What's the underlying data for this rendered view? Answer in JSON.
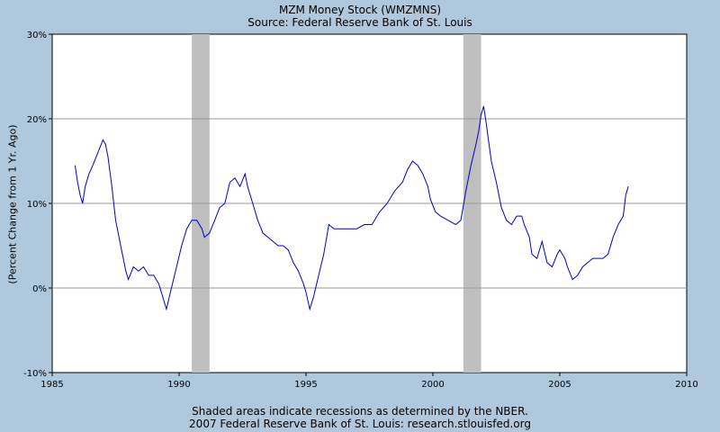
{
  "chart_data": {
    "type": "line",
    "title": "MZM Money Stock (WMZMNS)",
    "subtitle": "Source: Federal Reserve Bank of St. Louis",
    "ylabel": "(Percent Change from 1 Yr. Ago)",
    "xlabel": "",
    "xlim": [
      1985,
      2010
    ],
    "ylim": [
      -10,
      30
    ],
    "x_ticks": [
      1985,
      1990,
      1995,
      2000,
      2005,
      2010
    ],
    "x_tick_labels": [
      "1985",
      "1990",
      "1995",
      "2000",
      "2005",
      "2010"
    ],
    "y_ticks": [
      -10,
      0,
      10,
      20,
      30
    ],
    "y_tick_labels": [
      "-10%",
      "0%",
      "10%",
      "20%",
      "30%"
    ],
    "grid": true,
    "recessions": [
      [
        1990.5,
        1991.2
      ],
      [
        2001.2,
        2001.9
      ]
    ],
    "series": [
      {
        "color": "#0000cc",
        "x": [
          1985.9,
          1986.0,
          1986.1,
          1986.2,
          1986.3,
          1986.45,
          1986.6,
          1986.8,
          1987.0,
          1987.1,
          1987.2,
          1987.35,
          1987.5,
          1987.7,
          1987.9,
          1988.0,
          1988.2,
          1988.4,
          1988.6,
          1988.8,
          1989.0,
          1989.2,
          1989.3,
          1989.4,
          1989.5,
          1989.7,
          1989.9,
          1990.1,
          1990.3,
          1990.5,
          1990.7,
          1990.9,
          1991.0,
          1991.2,
          1991.4,
          1991.6,
          1991.8,
          1992.0,
          1992.2,
          1992.4,
          1992.6,
          1992.7,
          1992.9,
          1993.1,
          1993.3,
          1993.5,
          1993.7,
          1993.9,
          1994.1,
          1994.3,
          1994.5,
          1994.7,
          1994.9,
          1995.0,
          1995.15,
          1995.3,
          1995.5,
          1995.7,
          1995.9,
          1996.1,
          1996.4,
          1996.7,
          1997.0,
          1997.3,
          1997.6,
          1997.9,
          1998.2,
          1998.5,
          1998.8,
          1999.0,
          1999.2,
          1999.4,
          1999.6,
          1999.8,
          1999.9,
          2000.1,
          2000.3,
          2000.6,
          2000.9,
          2001.1,
          2001.3,
          2001.5,
          2001.7,
          2001.8,
          2001.9,
          2002.0,
          2002.1,
          2002.3,
          2002.5,
          2002.7,
          2002.9,
          2003.1,
          2003.3,
          2003.5,
          2003.6,
          2003.8,
          2003.9,
          2004.1,
          2004.3,
          2004.5,
          2004.7,
          2004.9,
          2005.0,
          2005.2,
          2005.3,
          2005.5,
          2005.7,
          2005.9,
          2006.1,
          2006.3,
          2006.5,
          2006.7,
          2006.9,
          2007.1,
          2007.3,
          2007.5,
          2007.6,
          2007.7
        ],
        "y": [
          14.5,
          12.5,
          11.0,
          10.0,
          12.0,
          13.5,
          14.5,
          16.0,
          17.5,
          17.0,
          15.5,
          12.0,
          8.0,
          5.0,
          2.0,
          1.0,
          2.5,
          2.0,
          2.5,
          1.5,
          1.5,
          0.5,
          -0.5,
          -1.5,
          -2.5,
          0.0,
          2.5,
          5.0,
          7.0,
          8.0,
          8.0,
          7.0,
          6.0,
          6.5,
          8.0,
          9.5,
          10.0,
          12.5,
          13.0,
          12.0,
          13.5,
          12.0,
          10.0,
          8.0,
          6.5,
          6.0,
          5.5,
          5.0,
          5.0,
          4.5,
          3.0,
          2.0,
          0.5,
          -0.5,
          -2.5,
          -1.0,
          1.5,
          4.0,
          7.5,
          7.0,
          7.0,
          7.0,
          7.0,
          7.5,
          7.5,
          9.0,
          10.0,
          11.5,
          12.5,
          14.0,
          15.0,
          14.5,
          13.5,
          12.0,
          10.5,
          9.0,
          8.5,
          8.0,
          7.5,
          8.0,
          11.5,
          14.5,
          17.0,
          18.5,
          20.5,
          21.5,
          19.5,
          15.0,
          12.5,
          9.5,
          8.0,
          7.5,
          8.5,
          8.5,
          7.5,
          6.0,
          4.0,
          3.5,
          5.5,
          3.0,
          2.5,
          4.0,
          4.5,
          3.5,
          2.5,
          1.0,
          1.5,
          2.5,
          3.0,
          3.5,
          3.5,
          3.5,
          4.0,
          6.0,
          7.5,
          8.5,
          11.0,
          12.0
        ]
      }
    ]
  },
  "footer": {
    "line1": "Shaded areas indicate recessions as determined by the NBER.",
    "line2": "2007 Federal Reserve Bank of St. Louis: research.stlouisfed.org"
  }
}
